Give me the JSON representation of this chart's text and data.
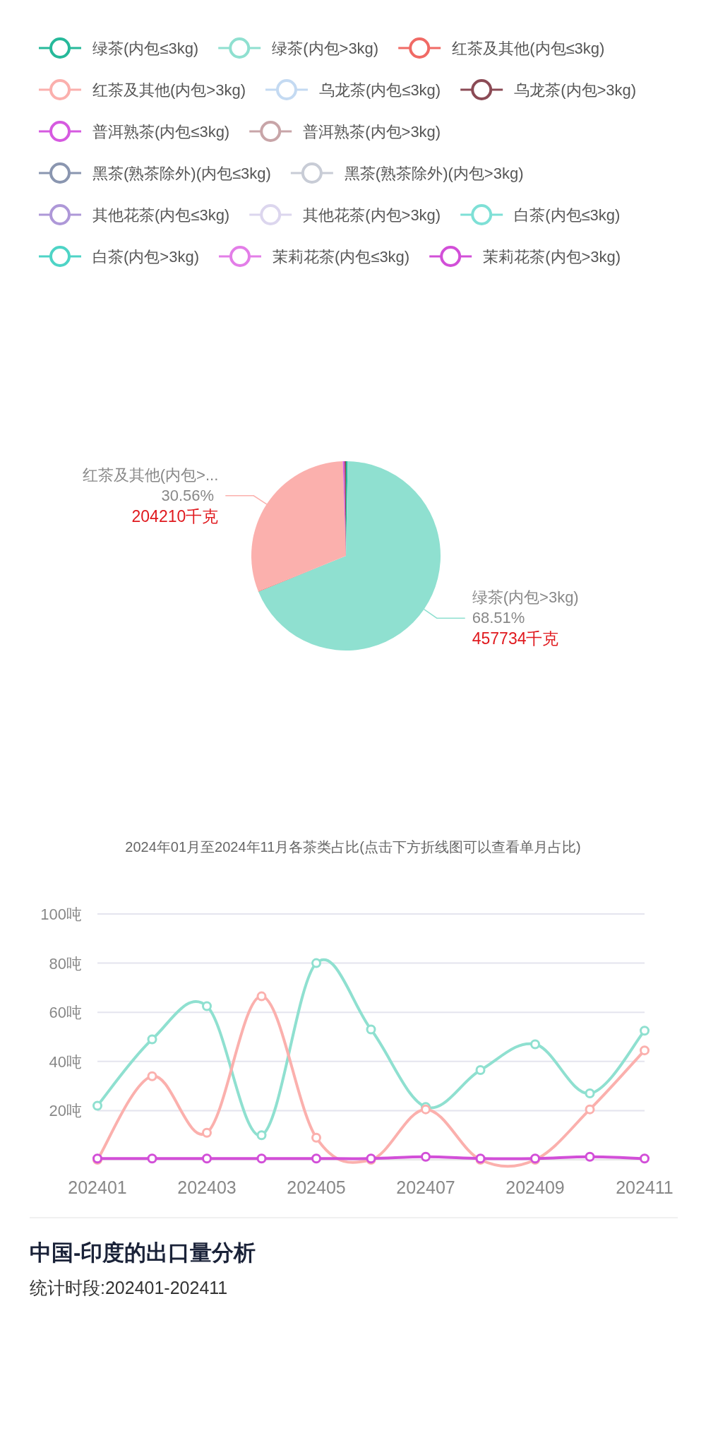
{
  "chart_data": [
    {
      "type": "pie",
      "categories": [
        null,
        "绿茶(内包>3kg)",
        null,
        "红茶及其他(内包>...",
        null,
        null
      ],
      "values": [
        0.3,
        68.51,
        0.1,
        30.56,
        0.3,
        0.23
      ],
      "colors": [
        "#26b99a",
        "#8fe0d0",
        "#f06a65",
        "#fbb0ad",
        "#d65ae0",
        "#8b4a55"
      ],
      "value_labels": [
        null,
        "68.51%\n457734千克",
        null,
        "30.56%\n204210千克",
        null,
        null
      ],
      "annotations": [
        "2024年01月至2024年11月各茶类占比(点击下方折线图可以查看单月占比)"
      ]
    },
    {
      "type": "line",
      "categories": [
        "202401",
        null,
        "202403",
        null,
        "202405",
        null,
        "202407",
        null,
        "202409",
        null,
        "202411"
      ],
      "ylim": [
        0,
        100
      ],
      "yticks": [
        {
          "value": 20,
          "label": "20吨"
        },
        {
          "value": 40,
          "label": "40吨"
        },
        {
          "value": 60,
          "label": "60吨"
        },
        {
          "value": 80,
          "label": "80吨"
        },
        {
          "value": 100,
          "label": "100吨"
        }
      ],
      "grid": "y",
      "legend": "top",
      "marker": "circle",
      "series": [
        {
          "name": "绿茶(内包≤3kg)",
          "color": "#26b99a",
          "values": [
            null,
            null,
            null,
            null,
            null,
            null,
            null,
            null,
            null,
            null,
            null
          ]
        },
        {
          "name": "绿茶(内包>3kg)",
          "color": "#8fe0d0",
          "values": [
            22,
            49,
            62.5,
            10,
            80,
            53,
            21.5,
            36.5,
            47,
            27,
            52.5
          ]
        },
        {
          "name": "红茶及其他(内包≤3kg)",
          "color": "#f06a65",
          "values": [
            null,
            null,
            null,
            null,
            null,
            null,
            null,
            null,
            null,
            null,
            null
          ]
        },
        {
          "name": "红茶及其他(内包>3kg)",
          "color": "#fbb0ad",
          "values": [
            0,
            34,
            11,
            66.5,
            9,
            0,
            20.5,
            0,
            0,
            20.5,
            44.5
          ]
        },
        {
          "name": "乌龙茶(内包≤3kg)",
          "color": "#c4daf2",
          "values": [
            null,
            null,
            null,
            null,
            null,
            null,
            null,
            null,
            null,
            null,
            null
          ]
        },
        {
          "name": "乌龙茶(内包>3kg)",
          "color": "#8b4a55",
          "values": [
            null,
            null,
            null,
            null,
            null,
            null,
            null,
            null,
            null,
            null,
            null
          ]
        },
        {
          "name": "普洱熟茶(内包≤3kg)",
          "color": "#d65ae0",
          "values": [
            null,
            null,
            null,
            null,
            null,
            null,
            null,
            null,
            null,
            null,
            null
          ]
        },
        {
          "name": "普洱熟茶(内包>3kg)",
          "color": "#c8a5a8",
          "values": [
            null,
            null,
            null,
            null,
            null,
            null,
            null,
            null,
            null,
            null,
            null
          ]
        },
        {
          "name": "黑茶(熟茶除外)(内包≤3kg)",
          "color": "#8a96b0",
          "values": [
            null,
            null,
            null,
            null,
            null,
            null,
            null,
            null,
            null,
            null,
            null
          ]
        },
        {
          "name": "黑茶(熟茶除外)(内包>3kg)",
          "color": "#c8ccd6",
          "values": [
            null,
            null,
            null,
            null,
            null,
            null,
            null,
            null,
            null,
            null,
            null
          ]
        },
        {
          "name": "其他花茶(内包≤3kg)",
          "color": "#ae98d8",
          "values": [
            null,
            null,
            null,
            null,
            null,
            null,
            null,
            null,
            null,
            null,
            null
          ]
        },
        {
          "name": "其他花茶(内包>3kg)",
          "color": "#dcd6ee",
          "values": [
            null,
            null,
            null,
            null,
            null,
            null,
            null,
            null,
            null,
            null,
            null
          ]
        },
        {
          "name": "白茶(内包≤3kg)",
          "color": "#7ee0d6",
          "values": [
            null,
            null,
            null,
            null,
            null,
            null,
            null,
            null,
            null,
            null,
            null
          ]
        },
        {
          "name": "白茶(内包>3kg)",
          "color": "#4ed4c6",
          "values": [
            null,
            null,
            null,
            null,
            null,
            null,
            null,
            null,
            null,
            null,
            null
          ]
        },
        {
          "name": "茉莉花茶(内包≤3kg)",
          "color": "#e37ee8",
          "values": [
            null,
            null,
            null,
            null,
            null,
            null,
            null,
            null,
            null,
            null,
            null
          ]
        },
        {
          "name": "茉莉花茶(内包>3kg)",
          "color": "#d24fd8",
          "values": [
            0.5,
            0.5,
            0.5,
            0.5,
            0.5,
            0.5,
            1.2,
            0.5,
            0.5,
            1.2,
            0.5
          ]
        }
      ],
      "annotations": [
        "中国-印度的出口量分析",
        "统计时段:202401-202411"
      ]
    }
  ]
}
